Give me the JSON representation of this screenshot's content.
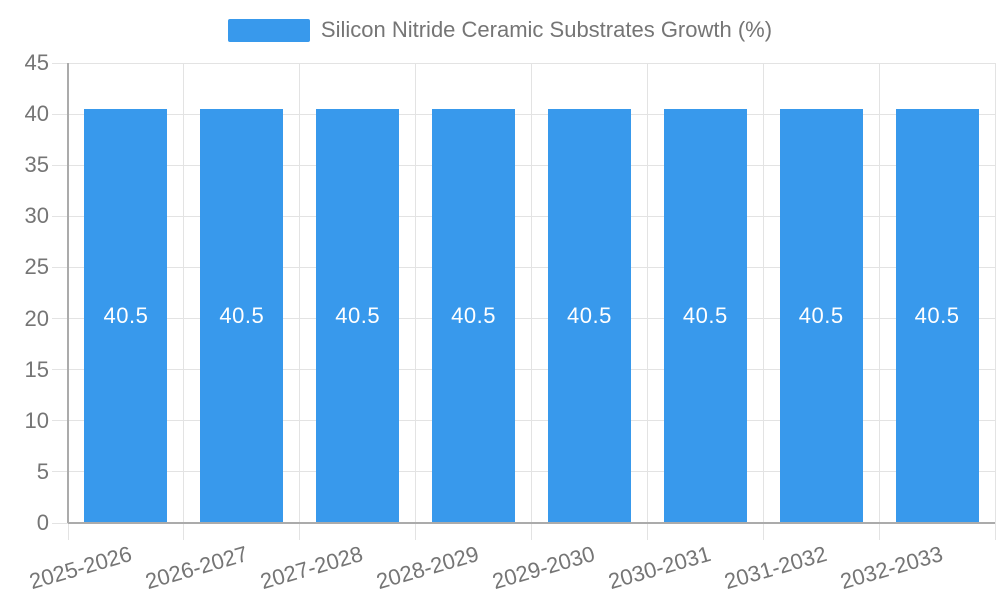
{
  "chart_data": {
    "type": "bar",
    "title": "Silicon Nitride Ceramic Substrates Growth (%)",
    "categories": [
      "2025-2026",
      "2026-2027",
      "2027-2028",
      "2028-2029",
      "2029-2030",
      "2030-2031",
      "2031-2032",
      "2032-2033"
    ],
    "values": [
      40.5,
      40.5,
      40.5,
      40.5,
      40.5,
      40.5,
      40.5,
      40.5
    ],
    "value_labels": [
      "40.5",
      "40.5",
      "40.5",
      "40.5",
      "40.5",
      "40.5",
      "40.5",
      "40.5"
    ],
    "ylim": [
      0,
      45
    ],
    "ytick_step": 5,
    "ytick_labels": [
      "0",
      "5",
      "10",
      "15",
      "20",
      "25",
      "30",
      "35",
      "40",
      "45"
    ],
    "xlabel": "",
    "ylabel": "",
    "grid": true,
    "legend_position": "top",
    "colors": {
      "bar": "#3899ec",
      "value_label": "#ffffff",
      "text": "#757575",
      "grid_line": "#e3e3e3",
      "axis_line": "#ababab",
      "background": "#ffffff"
    }
  }
}
